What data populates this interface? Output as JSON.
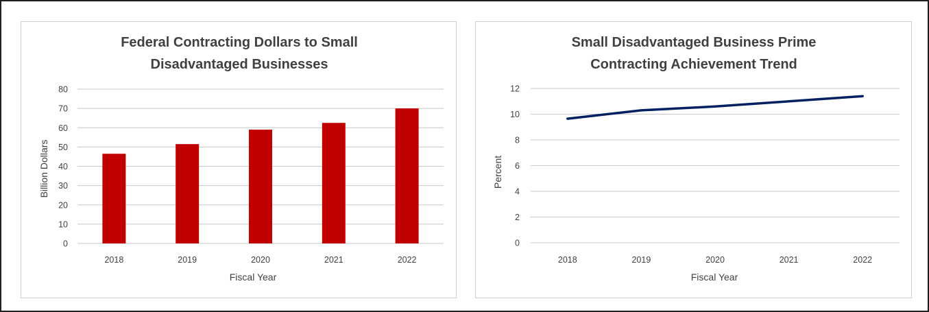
{
  "chart_data": [
    {
      "type": "bar",
      "title": "Federal Contracting Dollars to Small Disadvantaged Businesses",
      "title_lines": [
        "Federal Contracting Dollars to Small",
        "Disadvantaged Businesses"
      ],
      "xlabel": "Fiscal Year",
      "ylabel": "Billion Dollars",
      "categories": [
        "2018",
        "2019",
        "2020",
        "2021",
        "2022"
      ],
      "values": [
        46.5,
        51.5,
        59,
        62.5,
        70
      ],
      "ylim": [
        0,
        80
      ],
      "yticks": [
        "0",
        "10",
        "20",
        "30",
        "40",
        "50",
        "60",
        "70",
        "80"
      ],
      "grid": true,
      "legend": "none",
      "color": "#c00000"
    },
    {
      "type": "line",
      "title": "Small Disadvantaged Business Prime Contracting Achievement Trend",
      "title_lines": [
        "Small Disadvantaged Business Prime",
        "Contracting Achievement Trend"
      ],
      "xlabel": "Fiscal Year",
      "ylabel": "Percent",
      "categories": [
        "2018",
        "2019",
        "2020",
        "2021",
        "2022"
      ],
      "values": [
        9.65,
        10.3,
        10.6,
        11.0,
        11.4
      ],
      "ylim": [
        0,
        12
      ],
      "yticks": [
        "0",
        "2",
        "4",
        "6",
        "8",
        "10",
        "12"
      ],
      "grid": true,
      "legend": "none",
      "color": "#002060"
    }
  ]
}
